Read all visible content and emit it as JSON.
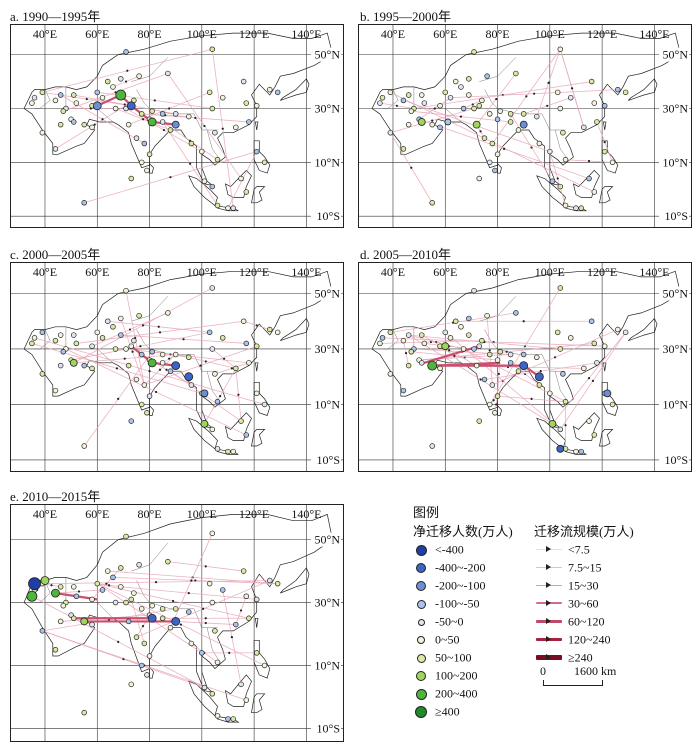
{
  "panels": [
    {
      "id": "a",
      "title": "a. 1990—1995年"
    },
    {
      "id": "b",
      "title": "b. 1995—2000年"
    },
    {
      "id": "c",
      "title": "c. 2000—2005年"
    },
    {
      "id": "d",
      "title": "d. 2005—2010年"
    },
    {
      "id": "e",
      "title": "e. 2010—2015年"
    }
  ],
  "axes": {
    "longitude_labels": [
      "40°E",
      "60°E",
      "80°E",
      "100°E",
      "120°E",
      "140°E"
    ],
    "latitude_labels": [
      "50°N",
      "30°N",
      "10°N",
      "10°S"
    ]
  },
  "legend": {
    "title": "图例",
    "net_migration_title": "净迁移人数(万人)",
    "net_migration_classes": [
      {
        "label": "<-400",
        "color": "#1f3ea8"
      },
      {
        "label": "-400~-200",
        "color": "#3d63c4"
      },
      {
        "label": "-200~-100",
        "color": "#6a8fd6"
      },
      {
        "label": "-100~-50",
        "color": "#a9c3ec"
      },
      {
        "label": "-50~0",
        "color": "#dfe6f2"
      },
      {
        "label": "0~50",
        "color": "#f1f4d9"
      },
      {
        "label": "50~100",
        "color": "#dbeaa1"
      },
      {
        "label": "100~200",
        "color": "#9fd65a"
      },
      {
        "label": "200~400",
        "color": "#4fb63c"
      },
      {
        "label": "≥400",
        "color": "#1e8a2a"
      }
    ],
    "flow_title": "迁移流规模(万人)",
    "flow_classes": [
      {
        "label": "<7.5",
        "color": "#f7d7df"
      },
      {
        "label": "7.5~15",
        "color": "#efb8c6"
      },
      {
        "label": "15~30",
        "color": "#e494a9"
      },
      {
        "label": "30~60",
        "color": "#d56c88"
      },
      {
        "label": "60~120",
        "color": "#c04868"
      },
      {
        "label": "120~240",
        "color": "#a4213f"
      },
      {
        "label": "≥240",
        "color": "#7a0d22"
      }
    ],
    "scalebar": {
      "start": "0",
      "end": "1600 km"
    }
  },
  "colors": {
    "flow": "#c9506f",
    "grid": "#333333",
    "coast": "#222222"
  }
}
